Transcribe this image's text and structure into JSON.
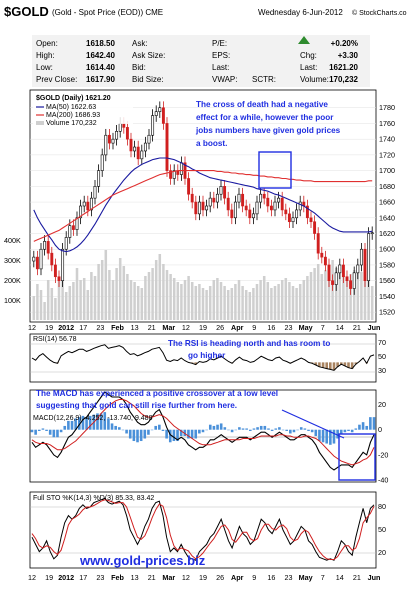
{
  "header": {
    "symbol": "$GOLD",
    "description": "(Gold - Spot Price (EOD))  CME",
    "date": "Wednesday  6-Jun-2012",
    "logo": "© StockCharts.com"
  },
  "quote": {
    "open_label": "Open:",
    "open": "1618.50",
    "high_label": "High:",
    "high": "1642.40",
    "low_label": "Low:",
    "low": "1614.40",
    "prev_close_label": "Prev Close:",
    "prev_close": "1617.90",
    "ask_label": "Ask:",
    "ask_size_label": "Ask Size:",
    "bid_label": "Bid:",
    "bid_size_label": "Bid Size:",
    "pe_label": "P/E:",
    "eps_label": "EPS:",
    "last_label": "Last:",
    "vwap_label": "VWAP:",
    "sctr_label": "SCTR:",
    "pct_change": "+0.20%",
    "chg_label": "Chg:",
    "chg": "+3.30",
    "last": "1621.20",
    "volume_label": "Volume:",
    "volume": "170,232"
  },
  "legend": {
    "price": "$GOLD (Daily) 1621.20",
    "ma50": "MA(50) 1622.63",
    "ma200": "MA(200) 1686.93",
    "volume": "Volume 170,232",
    "rsi": "RSI(14) 56.78",
    "macd": "MACD(12,26,9) -4.252, -13.740, 9.488",
    "sto": "Full STO %K(14,3) %D(3) 85.33, 83.42"
  },
  "notes": {
    "cross_1": "The cross of death had a negative",
    "cross_2": "effect for a while, however the poor",
    "cross_3": "jobs numbers have given gold prices",
    "cross_4": "a boost.",
    "rsi_1": "The RSI is heading north and has room to",
    "rsi_2": "go higher",
    "macd_1": "The MACD has experienced a positive crossover at a low level",
    "macd_2": "suggesting that gold can still rise further from here."
  },
  "rsi_axis": {
    "t70": "70",
    "t50": "50",
    "t30": "30"
  },
  "sto_axis": {
    "t80": "80",
    "t50": "50",
    "t20": "20"
  },
  "macd_axis": [
    "20",
    "0",
    "-20",
    "-40"
  ],
  "footer": {
    "site": "www.gold-prices.biz"
  },
  "chart_data": [
    {
      "type": "candlestick",
      "title": "$GOLD (Daily) 1621.20",
      "ylim": [
        1510,
        1800
      ],
      "y_ticks": [
        1520,
        1540,
        1560,
        1580,
        1600,
        1620,
        1640,
        1660,
        1680,
        1700,
        1720,
        1740,
        1760,
        1780
      ],
      "volume_ticks": [
        "400K",
        "300K",
        "200K",
        "100K"
      ],
      "x_labels": [
        "12",
        "19",
        "2012",
        "17",
        "23",
        "Feb",
        "13",
        "21",
        "Mar",
        "12",
        "19",
        "26",
        "Apr",
        "9",
        "16",
        "23",
        "May",
        "7",
        "14",
        "21",
        "Jun"
      ],
      "x_labels_2": [
        "12",
        "19",
        "2012",
        "17",
        "23",
        "Feb",
        "13",
        "21",
        "Mar",
        "12",
        "19",
        "26",
        "Apr",
        "9",
        "16",
        "23",
        "May",
        "7",
        "14",
        "21",
        "Jun"
      ],
      "close": [
        1590,
        1575,
        1600,
        1610,
        1595,
        1580,
        1565,
        1560,
        1600,
        1615,
        1630,
        1625,
        1640,
        1655,
        1660,
        1650,
        1665,
        1680,
        1700,
        1720,
        1745,
        1735,
        1740,
        1750,
        1760,
        1755,
        1740,
        1725,
        1730,
        1715,
        1725,
        1735,
        1745,
        1770,
        1775,
        1780,
        1760,
        1700,
        1690,
        1700,
        1695,
        1710,
        1690,
        1670,
        1660,
        1645,
        1660,
        1650,
        1655,
        1665,
        1660,
        1670,
        1680,
        1665,
        1650,
        1640,
        1660,
        1670,
        1655,
        1650,
        1640,
        1645,
        1660,
        1670,
        1665,
        1655,
        1650,
        1660,
        1665,
        1650,
        1645,
        1635,
        1640,
        1650,
        1660,
        1655,
        1640,
        1635,
        1620,
        1595,
        1590,
        1580,
        1560,
        1555,
        1570,
        1580,
        1565,
        1560,
        1550,
        1570,
        1580,
        1600,
        1560,
        1620,
        1621
      ],
      "ma50": [
        1650,
        1640,
        1632,
        1625,
        1618,
        1612,
        1605,
        1600,
        1598,
        1597,
        1598,
        1600,
        1603,
        1607,
        1612,
        1618,
        1625,
        1632,
        1640,
        1648,
        1656,
        1663,
        1670,
        1676,
        1682,
        1688,
        1693,
        1698,
        1702,
        1705,
        1708,
        1710,
        1712,
        1714,
        1715,
        1716,
        1716,
        1716,
        1715,
        1714,
        1712,
        1710,
        1707,
        1705,
        1702,
        1700,
        1697,
        1695,
        1693,
        1691,
        1690,
        1689,
        1688,
        1687,
        1686,
        1685,
        1684,
        1683,
        1682,
        1681,
        1680,
        1679,
        1677,
        1676,
        1675,
        1674,
        1672,
        1670,
        1669,
        1667,
        1665,
        1663,
        1661,
        1659,
        1657,
        1655,
        1652,
        1649,
        1646,
        1642,
        1638,
        1634,
        1630,
        1627,
        1625,
        1623,
        1622,
        1622,
        1622,
        1622,
        1622,
        1622,
        1622,
        1622,
        1623
      ],
      "ma200": [
        1610,
        1612,
        1614,
        1616,
        1618,
        1620,
        1622,
        1624,
        1627,
        1630,
        1633,
        1636,
        1639,
        1642,
        1645,
        1648,
        1651,
        1654,
        1657,
        1660,
        1663,
        1666,
        1669,
        1671,
        1673,
        1675,
        1677,
        1679,
        1681,
        1683,
        1685,
        1687,
        1689,
        1691,
        1693,
        1695,
        1696,
        1697,
        1698,
        1699,
        1700,
        1700,
        1700,
        1700,
        1700,
        1700,
        1700,
        1700,
        1700,
        1700,
        1700,
        1699,
        1699,
        1698,
        1698,
        1697,
        1697,
        1696,
        1696,
        1695,
        1695,
        1694,
        1694,
        1693,
        1693,
        1692,
        1692,
        1691,
        1691,
        1690,
        1690,
        1689,
        1689,
        1688,
        1688,
        1687,
        1687,
        1687,
        1686,
        1686,
        1686,
        1686,
        1686,
        1686,
        1686,
        1686,
        1686,
        1686,
        1686,
        1686,
        1686,
        1686,
        1686,
        1687,
        1687
      ],
      "volume": [
        120,
        180,
        150,
        90,
        200,
        160,
        110,
        210,
        230,
        140,
        170,
        190,
        260,
        200,
        210,
        150,
        240,
        220,
        280,
        300,
        350,
        250,
        200,
        260,
        310,
        270,
        230,
        200,
        190,
        170,
        160,
        220,
        240,
        260,
        300,
        330,
        280,
        250,
        230,
        210,
        190,
        180,
        200,
        220,
        190,
        170,
        180,
        160,
        150,
        170,
        200,
        210,
        190,
        170,
        150,
        160,
        180,
        200,
        170,
        150,
        140,
        160,
        180,
        200,
        220,
        190,
        160,
        170,
        180,
        200,
        210,
        190,
        170,
        160,
        180,
        200,
        220,
        240,
        260,
        280,
        230,
        250,
        270,
        300,
        260,
        240,
        220,
        200,
        230,
        250,
        260,
        240,
        220,
        200,
        170
      ]
    },
    {
      "type": "line",
      "title": "RSI(14) 56.78",
      "ylim": [
        0,
        100
      ],
      "values": [
        50,
        45,
        55,
        60,
        52,
        45,
        40,
        38,
        55,
        60,
        65,
        62,
        66,
        70,
        70,
        65,
        68,
        72,
        75,
        78,
        80,
        72,
        74,
        76,
        78,
        74,
        65,
        58,
        60,
        55,
        58,
        62,
        65,
        70,
        72,
        74,
        62,
        45,
        42,
        46,
        44,
        50,
        44,
        40,
        38,
        35,
        42,
        40,
        42,
        48,
        46,
        50,
        54,
        48,
        42,
        38,
        46,
        52,
        46,
        44,
        40,
        42,
        48,
        54,
        50,
        46,
        44,
        50,
        52,
        45,
        42,
        38,
        42,
        46,
        50,
        46,
        40,
        38,
        34,
        30,
        28,
        26,
        24,
        22,
        30,
        36,
        32,
        28,
        26,
        36,
        42,
        50,
        38,
        54,
        57
      ]
    },
    {
      "type": "line",
      "title": "MACD(12,26,9) -4.252, -13.740, 9.488",
      "ylim": [
        -40,
        30
      ],
      "macd": [
        -10,
        -14,
        -12,
        -10,
        -12,
        -16,
        -20,
        -22,
        -18,
        -12,
        -6,
        -4,
        0,
        4,
        8,
        10,
        14,
        18,
        22,
        26,
        30,
        28,
        26,
        26,
        26,
        24,
        20,
        14,
        10,
        6,
        4,
        4,
        6,
        10,
        14,
        16,
        10,
        2,
        -4,
        -6,
        -8,
        -6,
        -8,
        -12,
        -14,
        -16,
        -14,
        -14,
        -12,
        -8,
        -8,
        -6,
        -4,
        -6,
        -8,
        -10,
        -8,
        -6,
        -6,
        -6,
        -8,
        -6,
        -4,
        -2,
        -2,
        -4,
        -6,
        -4,
        -2,
        -4,
        -6,
        -8,
        -8,
        -6,
        -4,
        -4,
        -6,
        -8,
        -12,
        -18,
        -22,
        -26,
        -30,
        -32,
        -30,
        -28,
        -28,
        -28,
        -30,
        -26,
        -22,
        -18,
        -20,
        -10,
        -4
      ],
      "signal": [
        -8,
        -10,
        -11,
        -11,
        -11,
        -12,
        -14,
        -16,
        -16,
        -15,
        -13,
        -11,
        -9,
        -6,
        -3,
        0,
        3,
        6,
        9,
        13,
        16,
        19,
        21,
        23,
        24,
        24,
        23,
        21,
        19,
        16,
        13,
        11,
        10,
        10,
        11,
        12,
        11,
        9,
        6,
        3,
        1,
        -1,
        -3,
        -5,
        -7,
        -9,
        -11,
        -12,
        -12,
        -12,
        -11,
        -10,
        -9,
        -8,
        -8,
        -8,
        -8,
        -8,
        -7,
        -7,
        -7,
        -7,
        -6,
        -5,
        -5,
        -5,
        -5,
        -5,
        -4,
        -4,
        -5,
        -5,
        -6,
        -6,
        -6,
        -5,
        -5,
        -6,
        -7,
        -9,
        -12,
        -15,
        -18,
        -21,
        -23,
        -25,
        -26,
        -27,
        -28,
        -27,
        -26,
        -24,
        -23,
        -20,
        -14
      ]
    },
    {
      "type": "line",
      "title": "Full STO %K(14,3) %D(3) 85.33, 83.42",
      "ylim": [
        0,
        100
      ],
      "k": [
        40,
        30,
        20,
        25,
        35,
        20,
        10,
        15,
        40,
        60,
        70,
        65,
        70,
        80,
        85,
        80,
        82,
        88,
        90,
        92,
        94,
        88,
        86,
        88,
        90,
        85,
        70,
        50,
        40,
        30,
        40,
        55,
        65,
        80,
        88,
        90,
        70,
        40,
        20,
        25,
        20,
        30,
        20,
        12,
        10,
        8,
        20,
        25,
        30,
        40,
        45,
        55,
        65,
        50,
        35,
        25,
        40,
        55,
        45,
        40,
        30,
        35,
        50,
        65,
        60,
        50,
        45,
        55,
        65,
        50,
        40,
        30,
        35,
        45,
        55,
        50,
        35,
        30,
        20,
        12,
        10,
        8,
        10,
        8,
        20,
        35,
        30,
        20,
        15,
        40,
        60,
        80,
        60,
        80,
        85
      ],
      "d": [
        45,
        38,
        28,
        25,
        28,
        26,
        20,
        16,
        22,
        38,
        57,
        65,
        68,
        72,
        78,
        82,
        82,
        84,
        87,
        90,
        92,
        91,
        89,
        87,
        88,
        88,
        82,
        68,
        53,
        40,
        37,
        42,
        53,
        67,
        78,
        86,
        83,
        67,
        43,
        28,
        22,
        25,
        23,
        21,
        14,
        10,
        13,
        18,
        25,
        32,
        38,
        47,
        55,
        57,
        50,
        37,
        33,
        40,
        47,
        47,
        38,
        35,
        38,
        50,
        58,
        58,
        52,
        50,
        55,
        57,
        52,
        40,
        35,
        37,
        45,
        50,
        47,
        38,
        28,
        20,
        14,
        10,
        9,
        9,
        13,
        21,
        28,
        28,
        22,
        25,
        38,
        60,
        67,
        73,
        83
      ]
    }
  ]
}
